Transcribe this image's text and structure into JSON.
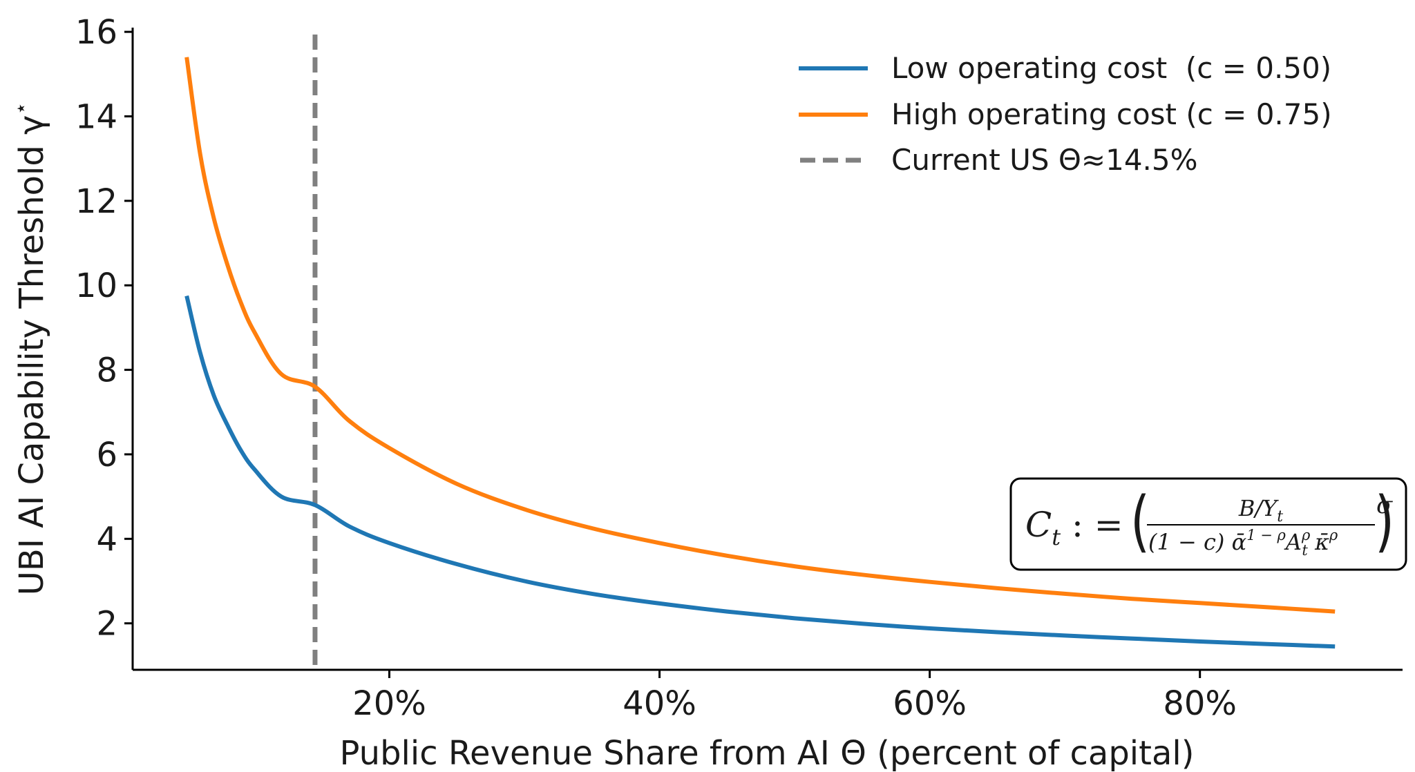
{
  "chart_data": {
    "type": "line",
    "xlabel": "Public Revenue Share from AI Θ (percent of capital)",
    "ylabel": "UBI AI Capability Threshold γ",
    "ylabel_superscript": "⋆",
    "xlim": [
      0.01,
      0.95
    ],
    "ylim": [
      0.9,
      16.1
    ],
    "x_ticks": [
      0.2,
      0.4,
      0.6,
      0.8
    ],
    "x_tick_labels": [
      "20%",
      "40%",
      "60%",
      "80%"
    ],
    "y_ticks": [
      2,
      4,
      6,
      8,
      10,
      12,
      14,
      16
    ],
    "y_tick_labels": [
      "2",
      "4",
      "6",
      "8",
      "10",
      "12",
      "14",
      "16"
    ],
    "series": [
      {
        "name": "Low operating cost  (c = 0.50)",
        "color": "#1f77b4",
        "x": [
          0.05,
          0.06,
          0.07,
          0.08,
          0.09,
          0.1,
          0.12,
          0.145,
          0.17,
          0.2,
          0.25,
          0.3,
          0.35,
          0.4,
          0.45,
          0.5,
          0.55,
          0.6,
          0.65,
          0.7,
          0.75,
          0.8,
          0.85,
          0.9
        ],
        "values": [
          9.75,
          8.4,
          7.4,
          6.7,
          6.1,
          5.65,
          5.0,
          4.8,
          4.3,
          3.9,
          3.4,
          3.0,
          2.7,
          2.47,
          2.28,
          2.12,
          1.99,
          1.88,
          1.79,
          1.71,
          1.64,
          1.57,
          1.51,
          1.45
        ]
      },
      {
        "name": "High operating cost (c = 0.75)",
        "color": "#ff7f0e",
        "x": [
          0.05,
          0.06,
          0.07,
          0.08,
          0.09,
          0.1,
          0.12,
          0.145,
          0.17,
          0.2,
          0.25,
          0.3,
          0.35,
          0.4,
          0.45,
          0.5,
          0.55,
          0.6,
          0.65,
          0.7,
          0.75,
          0.8,
          0.85,
          0.9
        ],
        "values": [
          15.4,
          13.1,
          11.6,
          10.5,
          9.6,
          8.9,
          7.9,
          7.6,
          6.8,
          6.15,
          5.3,
          4.7,
          4.25,
          3.9,
          3.6,
          3.35,
          3.15,
          2.98,
          2.83,
          2.7,
          2.58,
          2.48,
          2.38,
          2.28
        ]
      }
    ],
    "reference_line": {
      "name": "Current US Θ≈14.5%",
      "x": 0.145,
      "color": "#808080",
      "style": "dashed"
    },
    "legend_position": "top-right",
    "annotation": {
      "lhs": "C",
      "lhs_sub": "t",
      "assign": " : = ",
      "numerator": "B/Y",
      "numerator_sub": "t",
      "denominator": "(1 − c) ᾱ",
      "den_sup1": "1 − ρ",
      "den_mid": "A",
      "den_sup2": "ρ",
      "den_sub": "t",
      "den_kappa": " κ̄",
      "den_sup3": "ρ",
      "exponent": "σ"
    }
  }
}
